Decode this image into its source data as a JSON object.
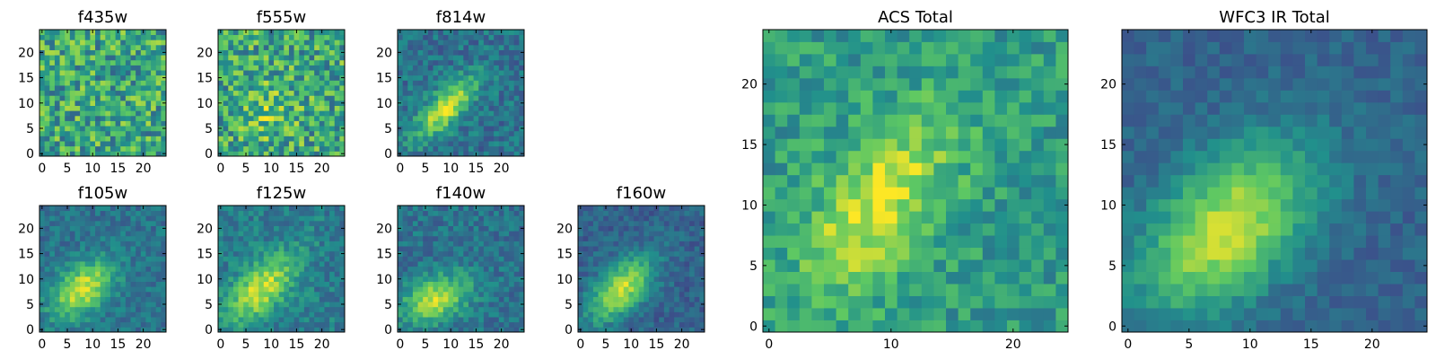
{
  "colormap": {
    "name": "viridis",
    "stops": [
      "#440154",
      "#3b528b",
      "#21908c",
      "#5dc863",
      "#fde725"
    ]
  },
  "chart_data": [
    {
      "type": "heatmap",
      "title": "f435w",
      "grid": false,
      "matrix_size": [
        25,
        25
      ],
      "xlim": [
        -0.5,
        24.5
      ],
      "ylim": [
        -0.5,
        24.5
      ],
      "x_ticks": [
        0,
        5,
        10,
        15,
        20
      ],
      "y_ticks": [
        0,
        5,
        10,
        15,
        20
      ],
      "x_tick_labels": [
        "0",
        "5",
        "10",
        "15",
        "20"
      ],
      "y_tick_labels": [
        "0",
        "5",
        "10",
        "15",
        "20"
      ],
      "source": null,
      "noise": 0.55,
      "background": 0.6,
      "seed": 11
    },
    {
      "type": "heatmap",
      "title": "f555w",
      "grid": false,
      "matrix_size": [
        25,
        25
      ],
      "xlim": [
        -0.5,
        24.5
      ],
      "ylim": [
        -0.5,
        24.5
      ],
      "x_ticks": [
        0,
        5,
        10,
        15,
        20
      ],
      "y_ticks": [
        0,
        5,
        10,
        15,
        20
      ],
      "x_tick_labels": [
        "0",
        "5",
        "10",
        "15",
        "20"
      ],
      "y_tick_labels": [
        "0",
        "5",
        "10",
        "15",
        "20"
      ],
      "source": {
        "x": 9,
        "y": 9,
        "sx": 4,
        "sy": 4,
        "angle": 45,
        "amp": 0.15
      },
      "noise": 0.55,
      "background": 0.6,
      "seed": 23
    },
    {
      "type": "heatmap",
      "title": "f814w",
      "grid": false,
      "matrix_size": [
        25,
        25
      ],
      "xlim": [
        -0.5,
        24.5
      ],
      "ylim": [
        -0.5,
        24.5
      ],
      "x_ticks": [
        0,
        5,
        10,
        15,
        20
      ],
      "y_ticks": [
        0,
        5,
        10,
        15,
        20
      ],
      "x_tick_labels": [
        "0",
        "5",
        "10",
        "15",
        "20"
      ],
      "y_tick_labels": [
        "0",
        "5",
        "10",
        "15",
        "20"
      ],
      "source": {
        "x": 9,
        "y": 9,
        "sx": 5.5,
        "sy": 2.2,
        "angle": 45,
        "amp": 0.55
      },
      "noise": 0.28,
      "background": 0.38,
      "seed": 37
    },
    {
      "type": "heatmap",
      "title": "f105w",
      "grid": false,
      "matrix_size": [
        25,
        25
      ],
      "xlim": [
        -0.5,
        24.5
      ],
      "ylim": [
        -0.5,
        24.5
      ],
      "x_ticks": [
        0,
        5,
        10,
        15,
        20
      ],
      "y_ticks": [
        0,
        5,
        10,
        15,
        20
      ],
      "x_tick_labels": [
        "0",
        "5",
        "10",
        "15",
        "20"
      ],
      "y_tick_labels": [
        "0",
        "5",
        "10",
        "15",
        "20"
      ],
      "source": {
        "x": 8,
        "y": 8,
        "sx": 5,
        "sy": 3,
        "angle": 40,
        "amp": 0.55
      },
      "noise": 0.22,
      "background": 0.38,
      "seed": 41
    },
    {
      "type": "heatmap",
      "title": "f125w",
      "grid": false,
      "matrix_size": [
        25,
        25
      ],
      "xlim": [
        -0.5,
        24.5
      ],
      "ylim": [
        -0.5,
        24.5
      ],
      "x_ticks": [
        0,
        5,
        10,
        15,
        20
      ],
      "y_ticks": [
        0,
        5,
        10,
        15,
        20
      ],
      "x_tick_labels": [
        "0",
        "5",
        "10",
        "15",
        "20"
      ],
      "y_tick_labels": [
        "0",
        "5",
        "10",
        "15",
        "20"
      ],
      "source": {
        "x": 8,
        "y": 8,
        "sx": 6,
        "sy": 3,
        "angle": 45,
        "amp": 0.5
      },
      "noise": 0.25,
      "background": 0.42,
      "seed": 53
    },
    {
      "type": "heatmap",
      "title": "f140w",
      "grid": false,
      "matrix_size": [
        25,
        25
      ],
      "xlim": [
        -0.5,
        24.5
      ],
      "ylim": [
        -0.5,
        24.5
      ],
      "x_ticks": [
        0,
        5,
        10,
        15,
        20
      ],
      "y_ticks": [
        0,
        5,
        10,
        15,
        20
      ],
      "x_tick_labels": [
        "0",
        "5",
        "10",
        "15",
        "20"
      ],
      "y_tick_labels": [
        "0",
        "5",
        "10",
        "15",
        "20"
      ],
      "source": {
        "x": 7,
        "y": 6,
        "sx": 5,
        "sy": 3,
        "angle": 25,
        "amp": 0.5
      },
      "noise": 0.24,
      "background": 0.38,
      "seed": 67
    },
    {
      "type": "heatmap",
      "title": "f160w",
      "grid": false,
      "matrix_size": [
        25,
        25
      ],
      "xlim": [
        -0.5,
        24.5
      ],
      "ylim": [
        -0.5,
        24.5
      ],
      "x_ticks": [
        0,
        5,
        10,
        15,
        20
      ],
      "y_ticks": [
        0,
        5,
        10,
        15,
        20
      ],
      "x_tick_labels": [
        "0",
        "5",
        "10",
        "15",
        "20"
      ],
      "y_tick_labels": [
        "0",
        "5",
        "10",
        "15",
        "20"
      ],
      "source": {
        "x": 8,
        "y": 8,
        "sx": 5.5,
        "sy": 2.8,
        "angle": 45,
        "amp": 0.6
      },
      "noise": 0.2,
      "background": 0.32,
      "seed": 71
    },
    {
      "type": "heatmap",
      "title": "ACS Total",
      "grid": false,
      "matrix_size": [
        25,
        25
      ],
      "xlim": [
        -0.5,
        24.5
      ],
      "ylim": [
        -0.5,
        24.5
      ],
      "x_ticks": [
        0,
        5,
        10,
        15,
        20
      ],
      "y_ticks": [
        0,
        5,
        10,
        15,
        20
      ],
      "x_tick_labels": [
        "0",
        "10",
        "20"
      ],
      "y_tick_labels": [
        "0",
        "5",
        "10",
        "15",
        "20"
      ],
      "x_tick_values": [
        0,
        10,
        20
      ],
      "source": {
        "x": 9,
        "y": 10,
        "sx": 6,
        "sy": 3,
        "angle": 55,
        "amp": 0.4
      },
      "noise": 0.3,
      "background": 0.55,
      "seed": 83
    },
    {
      "type": "heatmap",
      "title": "WFC3 IR Total",
      "grid": false,
      "matrix_size": [
        25,
        25
      ],
      "xlim": [
        -0.5,
        24.5
      ],
      "ylim": [
        -0.5,
        24.5
      ],
      "x_ticks": [
        0,
        5,
        10,
        15,
        20
      ],
      "y_ticks": [
        0,
        5,
        10,
        15,
        20
      ],
      "x_tick_labels": [
        "0",
        "5",
        "10",
        "15",
        "20"
      ],
      "y_tick_labels": [
        "0",
        "5",
        "10",
        "15",
        "20"
      ],
      "source": {
        "x": 8,
        "y": 8,
        "sx": 6,
        "sy": 3.5,
        "angle": 45,
        "amp": 0.6
      },
      "noise": 0.15,
      "background": 0.32,
      "seed": 97
    }
  ]
}
